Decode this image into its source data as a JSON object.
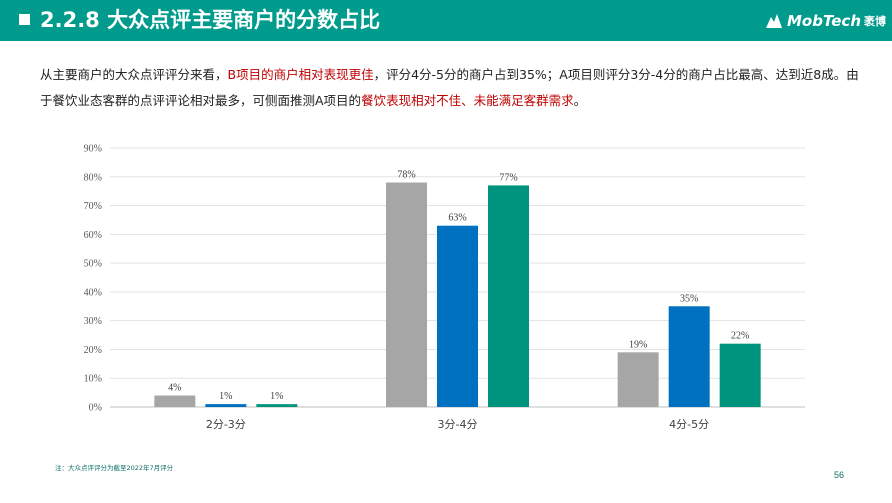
{
  "header": {
    "title": "2.2.8 大众点评主要商户的分数占比",
    "brand": "MobTech",
    "brand_cn": "袤博",
    "colors": {
      "header_bg": "#009b8d"
    }
  },
  "description": {
    "p1": "从主要商户的大众点评评分来看，",
    "p2": "B项目的商户相对表现更佳",
    "p3": "，评分4分-5分的商户占到35%；A项目则评分3分-4分的商户占比最高、达到近8成。由于餐饮业态客群的点评评论相对最多，可侧面推测A项目的",
    "p4": "餐饮表现相对不佳、未能满足客群需求",
    "p5": "。"
  },
  "chart_data": {
    "type": "bar",
    "categories": [
      "2分-3分",
      "3分-4分",
      "4分-5分"
    ],
    "series": [
      {
        "values": [
          4,
          78,
          19
        ],
        "color": "#a6a6a6"
      },
      {
        "values": [
          1,
          63,
          35
        ],
        "color": "#0070c0"
      },
      {
        "values": [
          1,
          77,
          22
        ],
        "color": "#00947f"
      }
    ],
    "y_ticks": [
      "0%",
      "10%",
      "20%",
      "30%",
      "40%",
      "50%",
      "60%",
      "70%",
      "80%",
      "90%"
    ],
    "ylim": [
      0,
      90
    ],
    "value_suffix": "%",
    "grid": true,
    "legend": "none"
  },
  "footer": {
    "note": "注：大众点评评分为截至2022年7月评分",
    "page": "56"
  }
}
